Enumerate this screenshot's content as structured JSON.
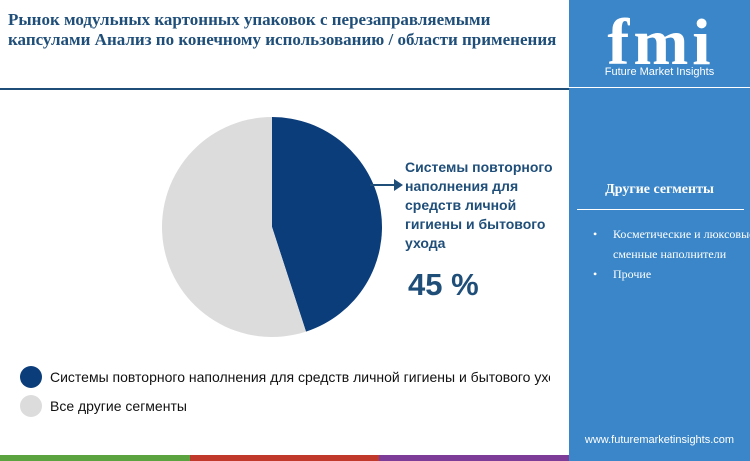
{
  "header": {
    "title": "Рынок модульных картонных упаковок с перезаправляемыми капсулами Анализ по конечному использованию / области применения"
  },
  "brand": {
    "logo_text": "fmi",
    "name": "Future Market Insights",
    "website": "www.futuremarketinsights.com"
  },
  "sidebar": {
    "title": "Другие сегменты",
    "items": [
      "Косметические и люксовые сменные наполнители",
      "Прочие"
    ]
  },
  "callout": {
    "label": "Системы повторного наполнения для средств личной гигиены и бытового ухода",
    "value": "45 %"
  },
  "legend": {
    "items": [
      "Системы повторного наполнения для средств личной гигиены и бытового ухода",
      "Все другие сегменты"
    ]
  },
  "colors": {
    "highlight": "#0b3d7a",
    "other": "#dcdcdc",
    "sidebar": "#3a86c8",
    "title": "#1f4e79"
  },
  "chart_data": {
    "type": "pie",
    "series": [
      {
        "name": "Системы повторного наполнения для средств личной гигиены и бытового ухода",
        "value": 45
      },
      {
        "name": "Все другие сегменты",
        "value": 55
      }
    ],
    "start_angle_deg": 0,
    "legend": "bottom-left"
  }
}
